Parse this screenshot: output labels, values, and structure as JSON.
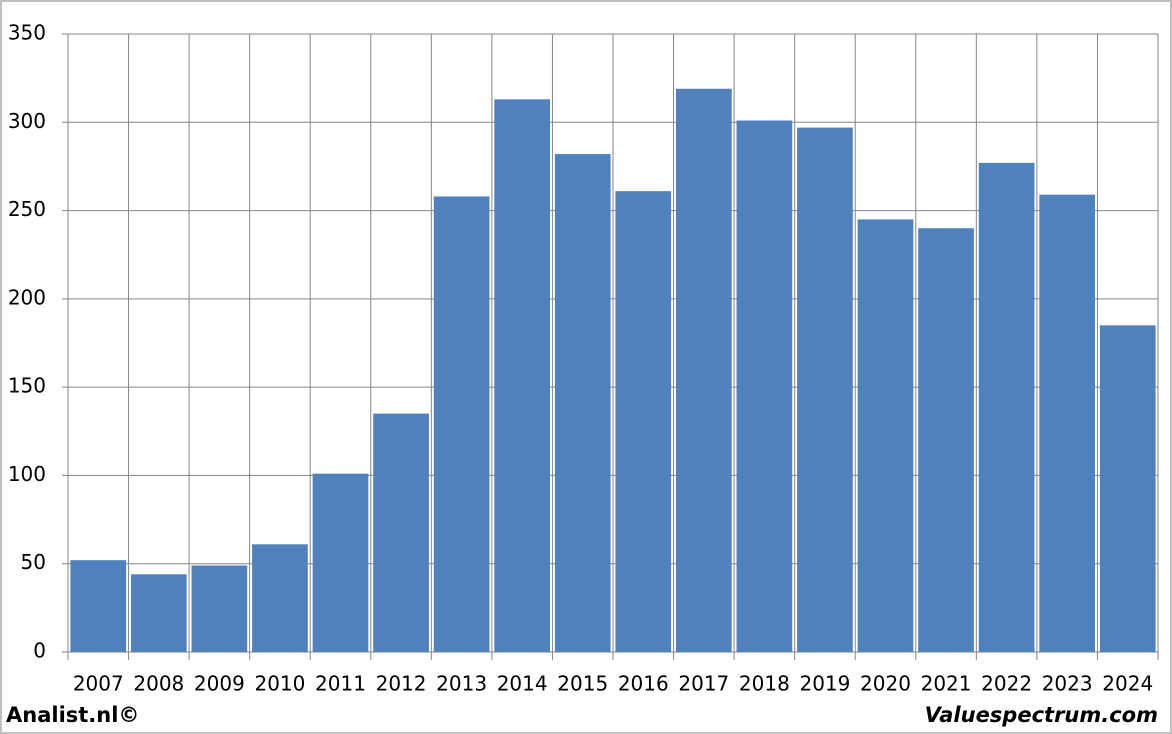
{
  "chart_data": {
    "type": "bar",
    "categories": [
      "2007",
      "2008",
      "2009",
      "2010",
      "2011",
      "2012",
      "2013",
      "2014",
      "2015",
      "2016",
      "2017",
      "2018",
      "2019",
      "2020",
      "2021",
      "2022",
      "2023",
      "2024"
    ],
    "values": [
      52,
      44,
      49,
      61,
      101,
      135,
      258,
      313,
      282,
      261,
      319,
      301,
      297,
      245,
      240,
      277,
      259,
      185
    ],
    "color": "#4f81bd",
    "ylim": [
      0,
      350
    ],
    "yticks": [
      0,
      50,
      100,
      150,
      200,
      250,
      300,
      350
    ],
    "grid": true
  },
  "footer": {
    "left": "Analist.nl©",
    "right": "Valuespectrum.com"
  }
}
